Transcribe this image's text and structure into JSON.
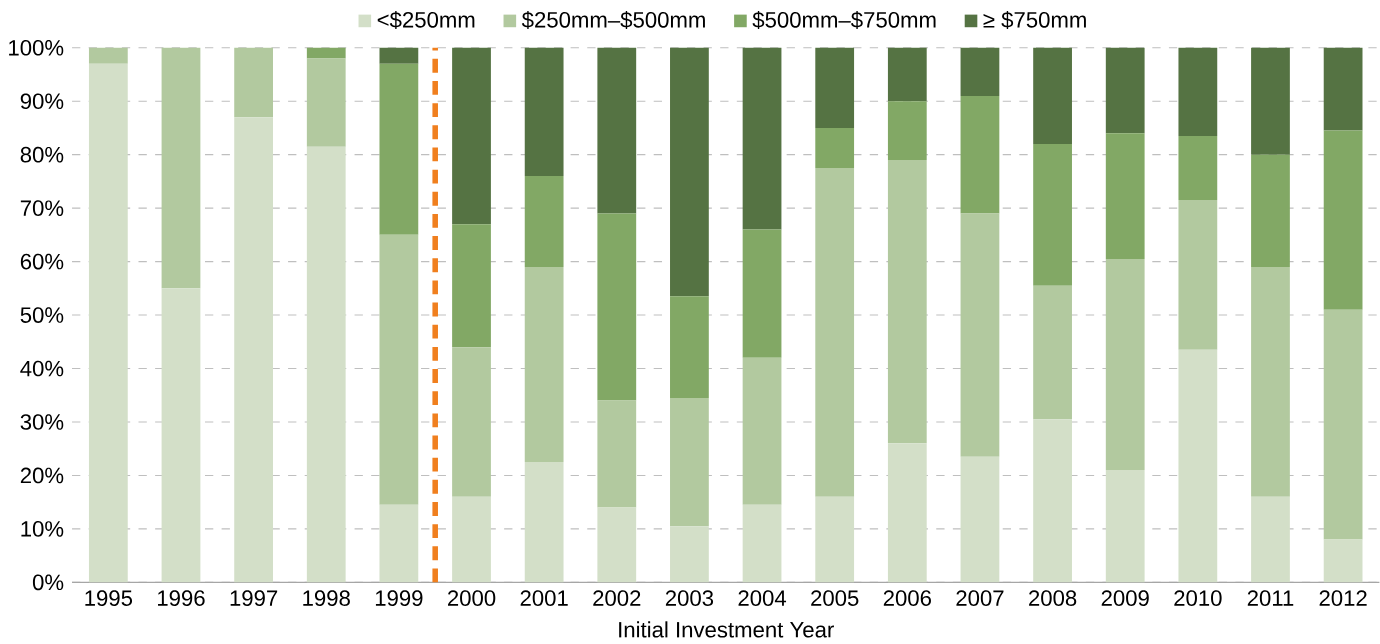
{
  "chart_data": {
    "type": "bar",
    "stacked": true,
    "xlabel": "Initial Investment Year",
    "x": [
      1995,
      1996,
      1997,
      1998,
      1999,
      2000,
      2001,
      2002,
      2003,
      2004,
      2005,
      2006,
      2007,
      2008,
      2009,
      2010,
      2011,
      2012
    ],
    "xlim": [
      1994.5,
      2012.5
    ],
    "xticks": [
      1995,
      1996,
      1997,
      1998,
      1999,
      2000,
      2001,
      2002,
      2003,
      2004,
      2005,
      2006,
      2007,
      2008,
      2009,
      2010,
      2011,
      2012
    ],
    "series": [
      {
        "name": "<$250mm",
        "color": "#d3dfc8",
        "values": [
          97,
          55,
          87,
          81.5,
          14.5,
          16,
          22.5,
          14,
          10.5,
          14.5,
          16,
          26,
          23.5,
          30.5,
          21,
          43.5,
          16,
          8
        ]
      },
      {
        "name": "$250mm–$500mm",
        "color": "#b2c99f",
        "values": [
          3,
          45,
          13,
          16.5,
          50.5,
          28,
          36.5,
          20,
          24,
          27.5,
          61.5,
          53,
          45.5,
          25,
          39.5,
          28,
          43,
          43
        ]
      },
      {
        "name": "$500mm–$750mm",
        "color": "#82a865",
        "values": [
          0,
          0,
          0,
          2,
          32,
          23,
          17,
          35,
          19,
          24,
          7.5,
          11,
          22,
          26.5,
          23.5,
          12,
          21,
          33.5
        ]
      },
      {
        "name": "≥ $750mm",
        "color": "#557343",
        "values": [
          0,
          0,
          0,
          0,
          3,
          33,
          24,
          31,
          46.5,
          34,
          15,
          10,
          9,
          18,
          16,
          16.5,
          20,
          15.5
        ]
      }
    ],
    "ylim": [
      0,
      100
    ],
    "yticks": [
      {
        "value": 0,
        "label": "0%"
      },
      {
        "value": 10,
        "label": "10%"
      },
      {
        "value": 20,
        "label": "20%"
      },
      {
        "value": 30,
        "label": "30%"
      },
      {
        "value": 40,
        "label": "40%"
      },
      {
        "value": 50,
        "label": "50%"
      },
      {
        "value": 60,
        "label": "60%"
      },
      {
        "value": 70,
        "label": "70%"
      },
      {
        "value": 80,
        "label": "80%"
      },
      {
        "value": 90,
        "label": "90%"
      },
      {
        "value": 100,
        "label": "100%"
      }
    ],
    "ref_lines": [
      {
        "axis": "x",
        "value": 1999.5,
        "color": "#f07f1e",
        "line_style": "dashed"
      }
    ],
    "grid": "y",
    "legend": "top"
  }
}
